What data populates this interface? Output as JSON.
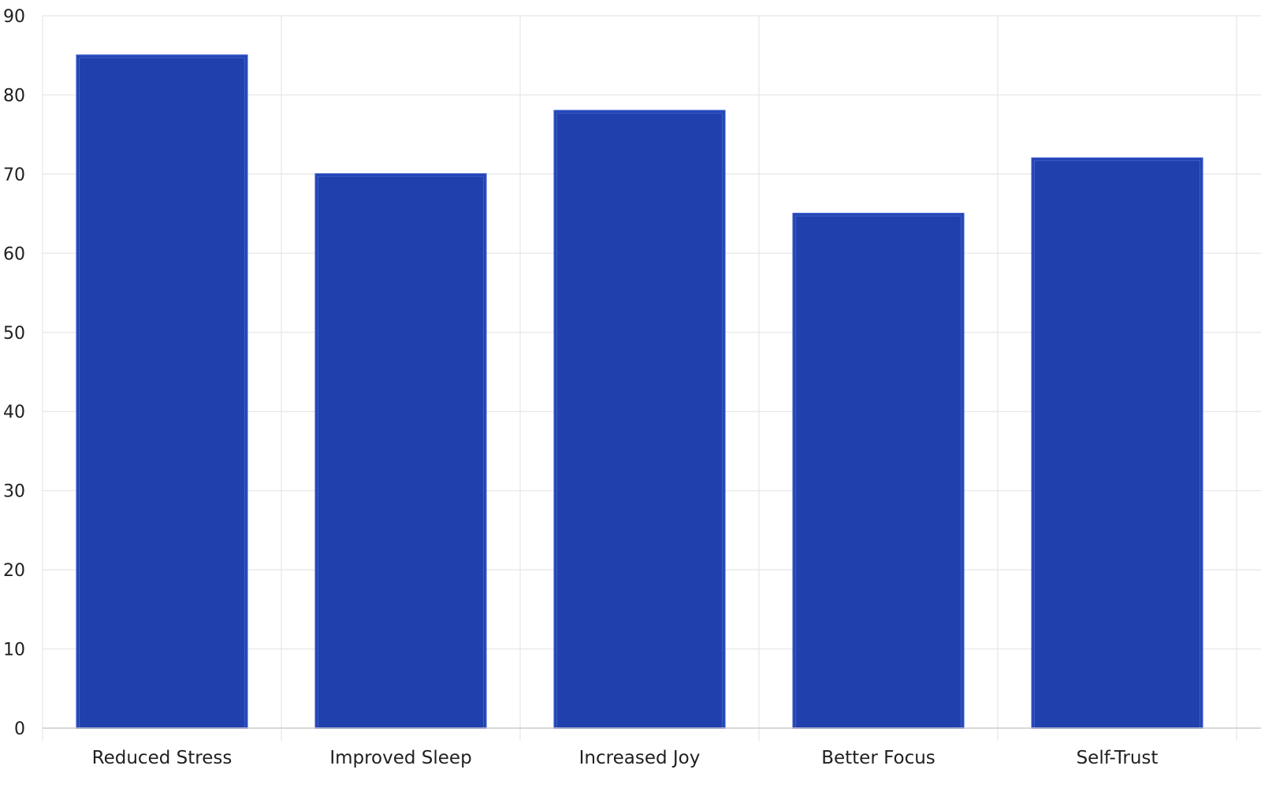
{
  "chart_data": {
    "type": "bar",
    "categories": [
      "Reduced Stress",
      "Improved Sleep",
      "Increased Joy",
      "Better Focus",
      "Self-Trust"
    ],
    "values": [
      85,
      70,
      78,
      65,
      72
    ],
    "title": "",
    "xlabel": "",
    "ylabel": "",
    "ylim": [
      0,
      90
    ],
    "y_ticks": [
      0,
      10,
      20,
      30,
      40,
      50,
      60,
      70,
      80,
      90
    ],
    "grid": true,
    "legend": "none",
    "colors": {
      "bar_fill": "#1f40ad",
      "bar_edge": "#2d4fc4",
      "bar_inner_line": "#4f6fd6",
      "grid": "#e6e6e6",
      "axis": "#cccccc",
      "text": "#1f1f1f"
    }
  }
}
